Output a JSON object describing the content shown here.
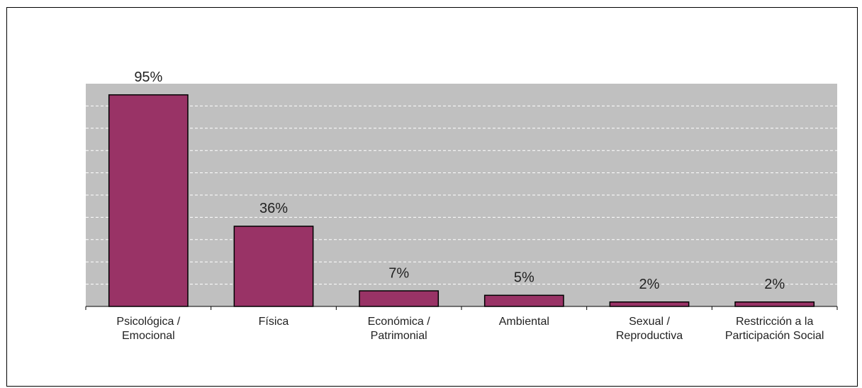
{
  "chart_data": {
    "type": "bar",
    "categories": [
      "Psicológica / Emocional",
      "Física",
      "Económica / Patrimonial",
      "Ambiental",
      "Sexual / Reproductiva",
      "Restricción a la Participación Social"
    ],
    "values": [
      95,
      36,
      7,
      5,
      2,
      2
    ],
    "value_labels": [
      "95%",
      "36%",
      "7%",
      "5%",
      "2%",
      "2%"
    ],
    "color": "#993366",
    "ylim": [
      0,
      100
    ],
    "yticks": [
      0,
      10,
      20,
      30,
      40,
      50,
      60,
      70,
      80,
      90,
      100
    ],
    "grid": true
  }
}
